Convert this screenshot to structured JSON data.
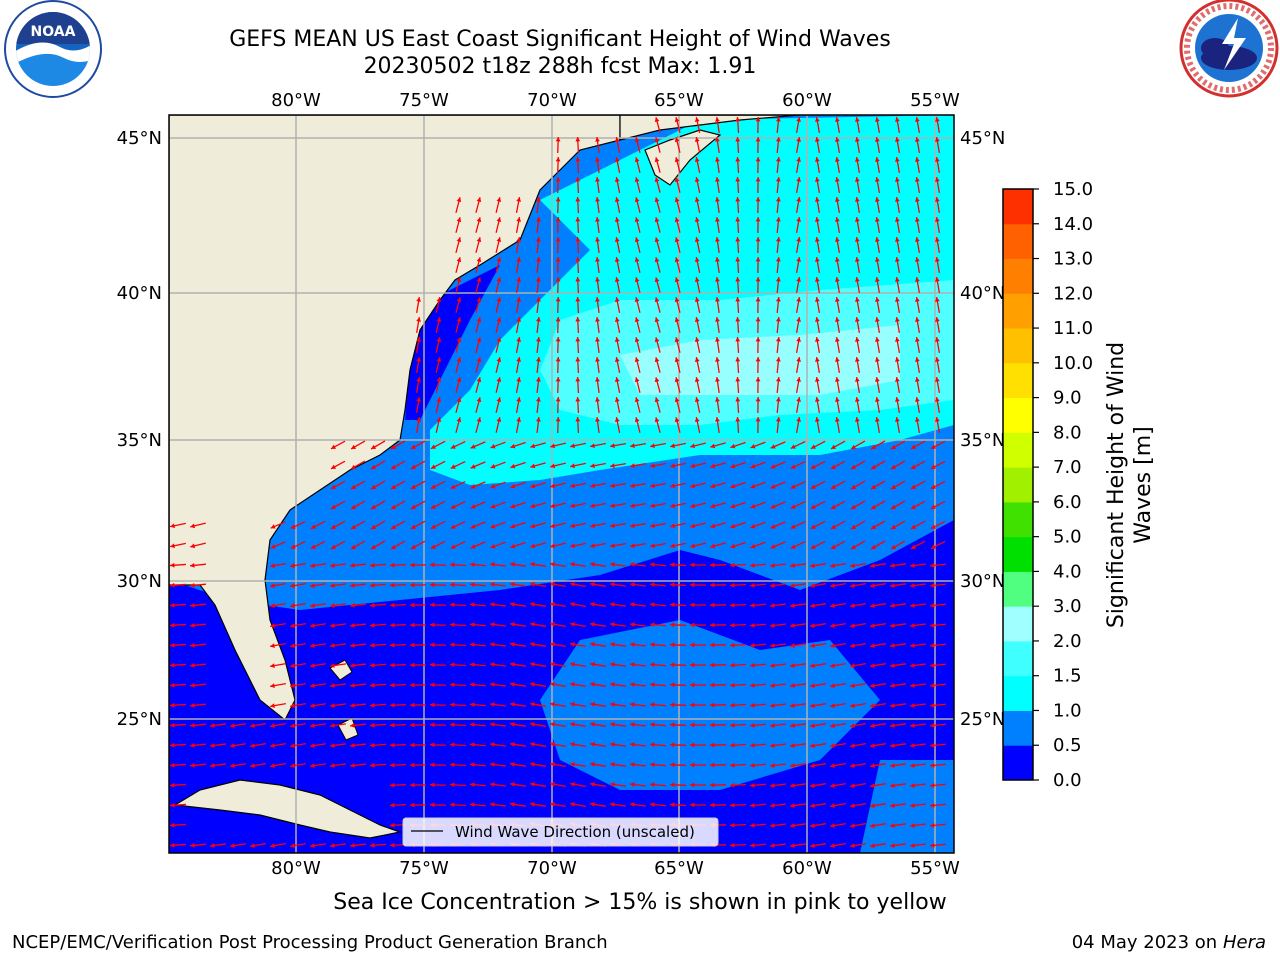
{
  "title_line1": "GEFS MEAN US East Coast Significant Height of Wind Waves",
  "title_line2": "20230502 t18z 288h fcst   Max: 1.91",
  "map": {
    "lon_ticks": [
      "80°W",
      "75°W",
      "70°W",
      "65°W",
      "60°W",
      "55°W"
    ],
    "lat_ticks": [
      "45°N",
      "40°N",
      "35°N",
      "30°N",
      "25°N"
    ],
    "legend_label": "Wind Wave Direction (unscaled)",
    "land_color": "#efedd9",
    "arrow_color": "#ff0000"
  },
  "colorbar": {
    "label_line1": "Significant Height of Wind",
    "label_line2": "Waves [m]",
    "ticks": [
      "0.0",
      "0.5",
      "1.0",
      "1.5",
      "2.0",
      "3.0",
      "4.0",
      "5.0",
      "6.0",
      "7.0",
      "8.0",
      "9.0",
      "10.0",
      "11.0",
      "12.0",
      "13.0",
      "14.0",
      "15.0"
    ],
    "colors": [
      "#0000ff",
      "#0080ff",
      "#00ffff",
      "#40ffff",
      "#a0ffff",
      "#50ff80",
      "#00e000",
      "#40e000",
      "#a0f000",
      "#d0ff00",
      "#ffff00",
      "#ffe000",
      "#ffc000",
      "#ffa000",
      "#ff8000",
      "#ff6000",
      "#ff3000",
      "#ff0000"
    ]
  },
  "logos": {
    "noaa_text": "NOAA",
    "nws_text": "NATIONAL WEATHER SERVICE"
  },
  "footer": {
    "sea_ice_note": "Sea Ice Concentration > 15% is shown in pink to yellow",
    "left": "NCEP/EMC/Verification Post Processing Product Generation Branch",
    "right_date": "04 May 2023 on",
    "right_machine": "Hera"
  }
}
